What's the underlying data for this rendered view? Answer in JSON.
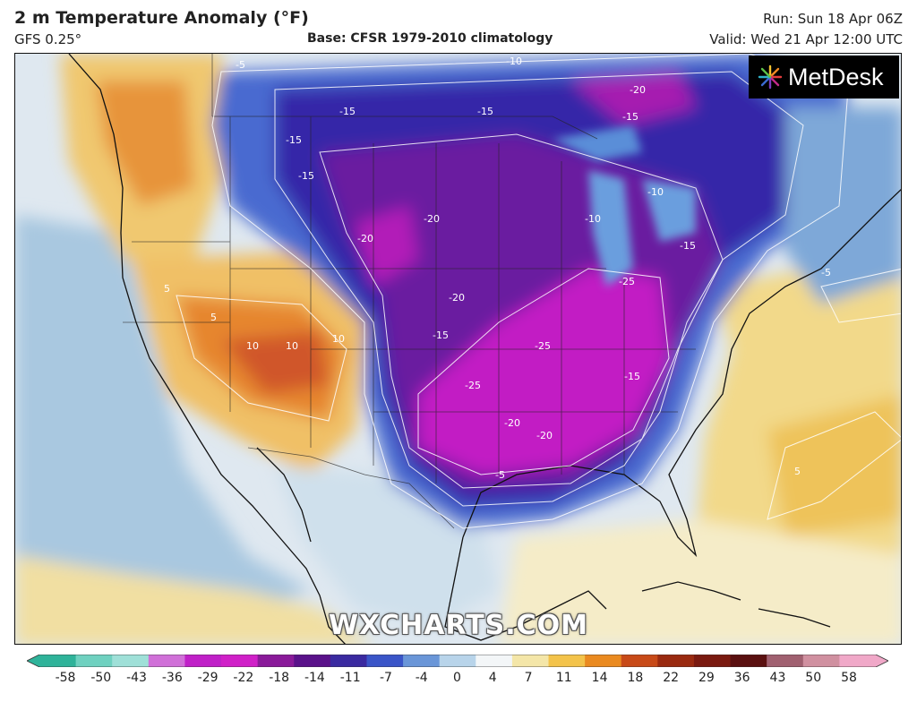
{
  "header": {
    "title": "2 m Temperature Anomaly (°F)",
    "model": "GFS 0.25°",
    "base": "Base: CFSR 1979-2010 climatology",
    "run": "Run: Sun 18 Apr 06Z",
    "valid": "Valid: Wed 21 Apr 12:00 UTC"
  },
  "logo": {
    "text": "MetDesk",
    "icon": "starburst-logo-icon"
  },
  "watermark": "WXCHARTS.COM",
  "colorbar": {
    "labels": [
      "-58",
      "-50",
      "-43",
      "-36",
      "-29",
      "-22",
      "-18",
      "-14",
      "-11",
      "-7",
      "-4",
      "0",
      "4",
      "7",
      "11",
      "14",
      "18",
      "22",
      "29",
      "36",
      "43",
      "50",
      "58"
    ],
    "colors": [
      "#2fb39a",
      "#6fd1c0",
      "#9fe0d8",
      "#d070d8",
      "#c020c8",
      "#d020c8",
      "#8a1a9a",
      "#5a128a",
      "#3a2aa0",
      "#3a55c8",
      "#6a96d8",
      "#b8d4ea",
      "#f3f6f8",
      "#f4e6a8",
      "#f3c34a",
      "#ea8a20",
      "#c84a18",
      "#9a2a10",
      "#7a1a10",
      "#5a1010",
      "#a06070",
      "#d090a0",
      "#f0a8c8"
    ]
  },
  "map_labels": [
    {
      "text": "-5"
    },
    {
      "text": "-10"
    },
    {
      "text": "-20"
    },
    {
      "text": "-15"
    },
    {
      "text": "-15"
    },
    {
      "text": "-15"
    },
    {
      "text": "-15"
    },
    {
      "text": "-15"
    },
    {
      "text": "-20"
    },
    {
      "text": "-20"
    },
    {
      "text": "-10"
    },
    {
      "text": "-10"
    },
    {
      "text": "-15"
    },
    {
      "text": "-25"
    },
    {
      "text": "-20"
    },
    {
      "text": "-25"
    },
    {
      "text": "-15"
    },
    {
      "text": "-25"
    },
    {
      "text": "-20"
    },
    {
      "text": "-20"
    },
    {
      "text": "-15"
    },
    {
      "text": "-5"
    },
    {
      "text": "-5"
    },
    {
      "text": "5"
    },
    {
      "text": "10"
    },
    {
      "text": "10"
    },
    {
      "text": "10"
    },
    {
      "text": "5"
    },
    {
      "text": "5"
    }
  ]
}
